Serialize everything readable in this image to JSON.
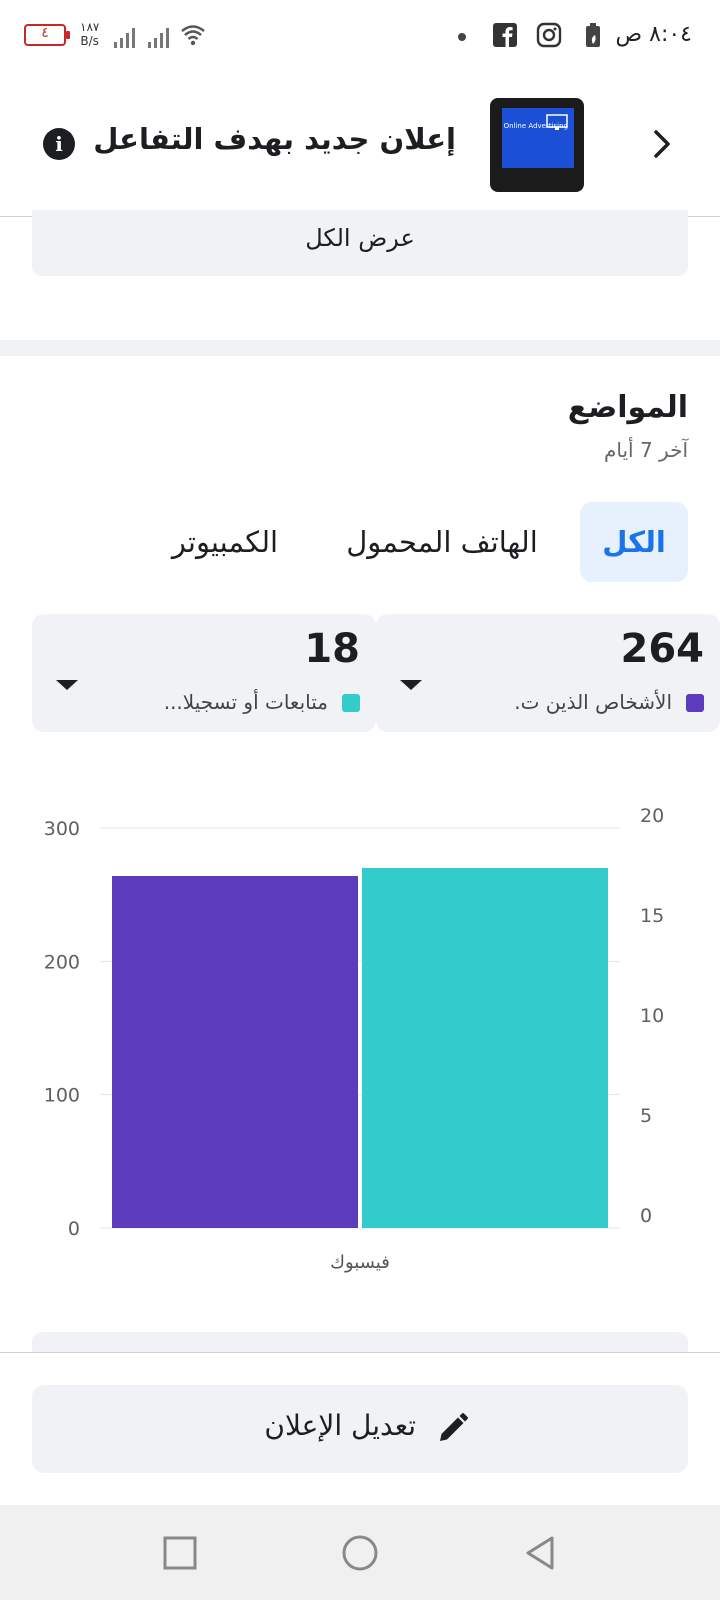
{
  "status_bar": {
    "time": "٨:٠٤ ص",
    "battery": "٤",
    "net_speed_value": "١٨٧",
    "net_speed_unit": "B/s",
    "icons": [
      "facebook-icon",
      "instagram-icon",
      "battery-saver-icon",
      "wifi-icon",
      "signal-icon"
    ]
  },
  "header": {
    "title": "إعلان جديد بهدف التفاعل",
    "thumbnail_text": "Online Advertising"
  },
  "view_all_label": "عرض الكل",
  "placements": {
    "title": "المواضع",
    "subtitle": "آخر 7 أيام",
    "tabs": [
      {
        "label": "الكل",
        "active": true
      },
      {
        "label": "الهاتف المحمول",
        "active": false
      },
      {
        "label": "الكمبيوتر",
        "active": false
      }
    ],
    "metrics": [
      {
        "value": "264",
        "label": "الأشخاص الذين ت.",
        "color": "#5c3bbd"
      },
      {
        "value": "18",
        "label": "متابعات أو تسجيلا...",
        "color": "#33cccc"
      }
    ]
  },
  "chart_data": {
    "type": "bar",
    "categories": [
      "فيسبوك"
    ],
    "series": [
      {
        "values": [
          264
        ],
        "color": "#5c3bbd",
        "axis": "left"
      },
      {
        "values": [
          18
        ],
        "color": "#33cccc",
        "axis": "right"
      }
    ],
    "y_left": {
      "ticks": [
        0,
        100,
        200,
        300
      ],
      "range": [
        0,
        300
      ]
    },
    "y_right": {
      "ticks": [
        0,
        5,
        10,
        15,
        20
      ],
      "range": [
        0,
        20
      ]
    },
    "grid": true
  },
  "edit_button_label": "تعديل الإعلان",
  "nav": {
    "buttons": [
      "recent-apps",
      "home",
      "back"
    ]
  }
}
